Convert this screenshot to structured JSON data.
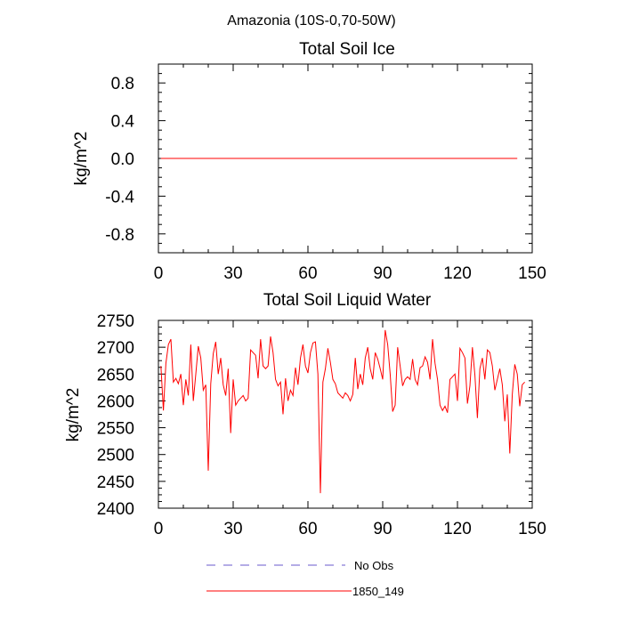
{
  "figure": {
    "title": "Amazonia (10S-0,70-50W)"
  },
  "legend": {
    "placement": "bottom-center",
    "entries": [
      {
        "label": "No Obs",
        "color": "#6a5acd",
        "dash": true
      },
      {
        "label": "1850_149",
        "color": "#ff0000",
        "dash": false
      }
    ]
  },
  "chart_data": [
    {
      "type": "line",
      "title": "Total Soil Ice",
      "ylabel": "kg/m^2",
      "xlabel": "",
      "xlim": [
        0,
        150
      ],
      "ylim": [
        -1.0,
        1.0
      ],
      "xticks": [
        0,
        30,
        60,
        90,
        120,
        150
      ],
      "xtick_labels": [
        "0",
        "30",
        "60",
        "90",
        "120",
        "150"
      ],
      "yticks": [
        -0.8,
        -0.4,
        0.0,
        0.4,
        0.8
      ],
      "ytick_labels": [
        "-0.8",
        "-0.4",
        "0.0",
        "0.4",
        "0.8"
      ],
      "grid": false,
      "series": [
        {
          "name": "1850_149",
          "color": "#ff0000",
          "x_start": 1,
          "x_end": 144,
          "values": [
            0,
            0
          ]
        }
      ]
    },
    {
      "type": "line",
      "title": "Total Soil Liquid Water",
      "ylabel": "kg/m^2",
      "xlabel": "",
      "xlim": [
        0,
        150
      ],
      "ylim": [
        2400,
        2750
      ],
      "xticks": [
        0,
        30,
        60,
        90,
        120,
        150
      ],
      "xtick_labels": [
        "0",
        "30",
        "60",
        "90",
        "120",
        "150"
      ],
      "yticks": [
        2400,
        2450,
        2500,
        2550,
        2600,
        2650,
        2700,
        2750
      ],
      "ytick_labels": [
        "2400",
        "2450",
        "2500",
        "2550",
        "2600",
        "2650",
        "2700",
        "2750"
      ],
      "grid": false,
      "series": [
        {
          "name": "1850_149",
          "color": "#ff0000",
          "x_start": 1,
          "values": [
            2665,
            2582,
            2670,
            2705,
            2715,
            2635,
            2642,
            2632,
            2650,
            2592,
            2640,
            2610,
            2705,
            2600,
            2650,
            2702,
            2680,
            2620,
            2630,
            2470,
            2632,
            2688,
            2710,
            2650,
            2680,
            2630,
            2610,
            2660,
            2540,
            2640,
            2592,
            2600,
            2605,
            2610,
            2600,
            2605,
            2695,
            2690,
            2685,
            2642,
            2715,
            2665,
            2660,
            2665,
            2720,
            2690,
            2640,
            2628,
            2635,
            2575,
            2642,
            2600,
            2620,
            2610,
            2662,
            2630,
            2680,
            2705,
            2665,
            2652,
            2690,
            2708,
            2710,
            2650,
            2428,
            2635,
            2660,
            2698,
            2672,
            2640,
            2632,
            2615,
            2610,
            2605,
            2615,
            2610,
            2600,
            2612,
            2680,
            2622,
            2650,
            2630,
            2680,
            2700,
            2660,
            2640,
            2690,
            2678,
            2660,
            2640,
            2732,
            2705,
            2650,
            2580,
            2592,
            2700,
            2665,
            2628,
            2640,
            2645,
            2640,
            2678,
            2640,
            2630,
            2662,
            2665,
            2682,
            2672,
            2640,
            2715,
            2670,
            2640,
            2592,
            2582,
            2590,
            2578,
            2640,
            2645,
            2650,
            2600,
            2698,
            2690,
            2680,
            2595,
            2628,
            2700,
            2648,
            2568,
            2660,
            2680,
            2640,
            2695,
            2690,
            2665,
            2620,
            2640,
            2660,
            2630,
            2562,
            2612,
            2502,
            2612,
            2668,
            2650,
            2590,
            2630,
            2635
          ]
        }
      ]
    }
  ]
}
